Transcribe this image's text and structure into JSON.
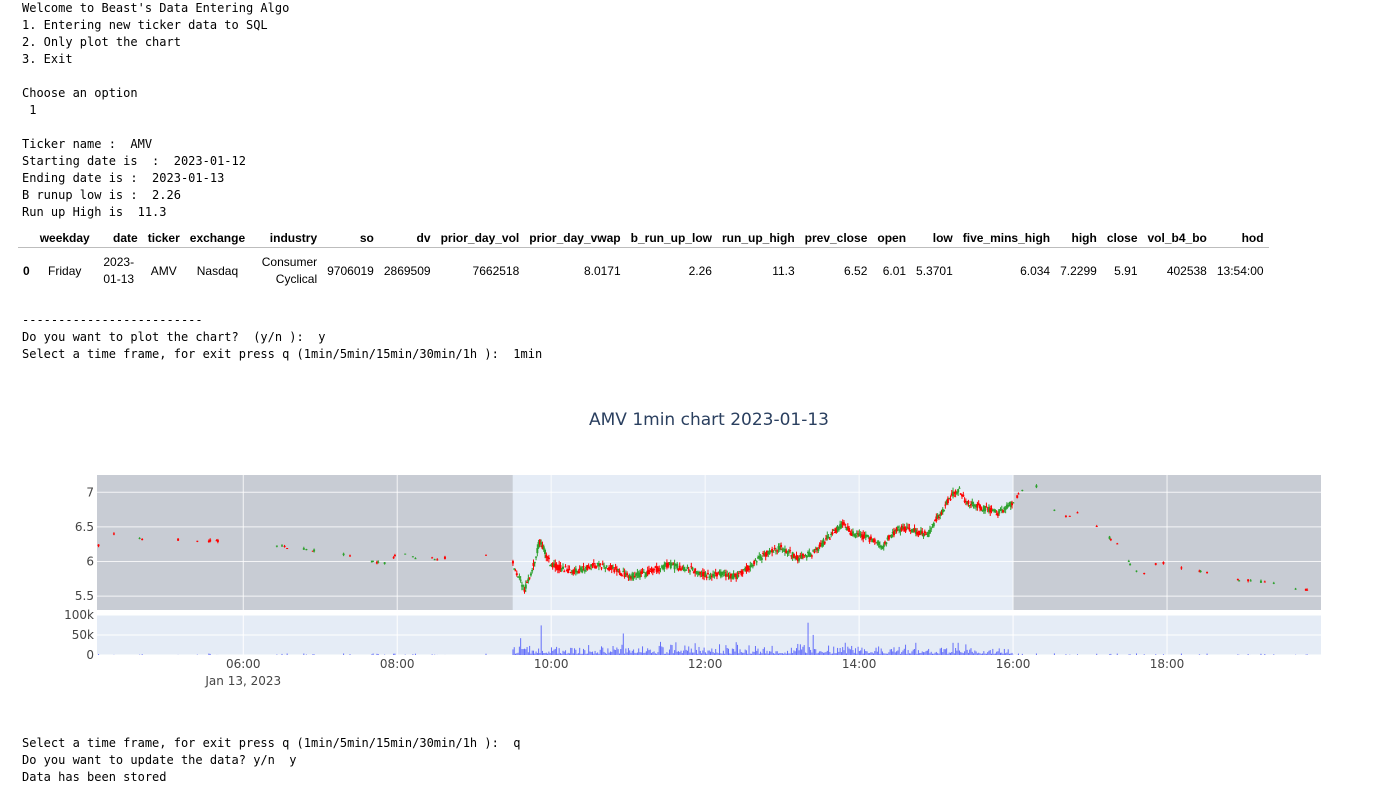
{
  "console_top": [
    "Welcome to Beast's Data Entering Algo",
    "1. Entering new ticker data to SQL",
    "2. Only plot the chart",
    "3. Exit",
    "",
    "Choose an option",
    " 1",
    "",
    "Ticker name :  AMV",
    "Starting date is  :  2023-01-12",
    "Ending date is :  2023-01-13",
    "B runup low is :  2.26",
    "Run up High is  11.3"
  ],
  "table": {
    "columns": [
      "",
      "weekday",
      "date",
      "ticker",
      "exchange",
      "industry",
      "so",
      "dv",
      "prior_day_vol",
      "prior_day_vwap",
      "b_run_up_low",
      "run_up_high",
      "prev_close",
      "open",
      "low",
      "five_mins_high",
      "high",
      "close",
      "vol_b4_bo",
      "hod"
    ],
    "rows": [
      [
        "0",
        "Friday",
        "2023-01-13",
        "AMV",
        "Nasdaq",
        "Consumer Cyclical",
        "9706019",
        "2869509",
        "7662518",
        "8.0171",
        "2.26",
        "11.3",
        "6.52",
        "6.01",
        "5.3701",
        "6.034",
        "7.2299",
        "5.91",
        "402538",
        "13:54:00"
      ]
    ]
  },
  "console_mid": [
    "-------------------------",
    "Do you want to plot the chart?  (y/n ):  y",
    "Select a time frame, for exit press q (1min/5min/15min/30min/1h ):  1min"
  ],
  "console_bottom": [
    "Select a time frame, for exit press q (1min/5min/15min/30min/1h ):  q",
    "Do you want to update the data? y/n  y",
    "Data has been stored"
  ],
  "chart_data": {
    "type": "candlestick",
    "title": "AMV 1min chart 2023-01-13",
    "x_date_label": "Jan 13, 2023",
    "x_range_hours": [
      4.1,
      20.0
    ],
    "x_ticks": [
      {
        "h": 6,
        "label": "06:00"
      },
      {
        "h": 8,
        "label": "08:00"
      },
      {
        "h": 10,
        "label": "10:00"
      },
      {
        "h": 12,
        "label": "12:00"
      },
      {
        "h": 14,
        "label": "14:00"
      },
      {
        "h": 16,
        "label": "16:00"
      },
      {
        "h": 18,
        "label": "18:00"
      }
    ],
    "price_ylim": [
      5.3,
      7.25
    ],
    "price_ticks": [
      {
        "v": 5.5,
        "label": "5.5"
      },
      {
        "v": 6,
        "label": "6"
      },
      {
        "v": 6.5,
        "label": "6.5"
      },
      {
        "v": 7,
        "label": "7"
      }
    ],
    "volume_ylim": [
      0,
      100000
    ],
    "volume_ticks": [
      {
        "v": 0,
        "label": "0"
      },
      {
        "v": 50000,
        "label": "50k"
      },
      {
        "v": 100000,
        "label": "100k"
      }
    ],
    "extended_hours_shading": [
      [
        4.1,
        9.5
      ],
      [
        16.0,
        20.0
      ]
    ],
    "colors": {
      "up": "#2ca02c",
      "down": "#ff0000",
      "volume": "#636efa",
      "plot_bg": "#e5ecf6",
      "shade": "#c8ccd4",
      "grid": "#ffffff",
      "text": "#444444",
      "title": "#2a3f5f"
    },
    "price_path": [
      [
        4.1,
        6.2
      ],
      [
        4.2,
        6.35
      ],
      [
        4.3,
        6.4
      ],
      [
        4.5,
        6.38
      ],
      [
        4.8,
        6.3
      ],
      [
        5.2,
        6.32
      ],
      [
        5.6,
        6.3
      ],
      [
        6.0,
        6.28
      ],
      [
        6.5,
        6.22
      ],
      [
        6.8,
        6.18
      ],
      [
        7.0,
        6.14
      ],
      [
        7.3,
        6.1
      ],
      [
        7.6,
        6.0
      ],
      [
        7.9,
        5.98
      ],
      [
        8.0,
        6.12
      ],
      [
        8.3,
        6.05
      ],
      [
        8.6,
        6.05
      ],
      [
        8.9,
        6.05
      ],
      [
        9.2,
        6.12
      ],
      [
        9.45,
        6.1
      ],
      [
        9.55,
        5.85
      ],
      [
        9.65,
        5.6
      ],
      [
        9.75,
        5.85
      ],
      [
        9.85,
        6.3
      ],
      [
        10.0,
        5.95
      ],
      [
        10.3,
        5.85
      ],
      [
        10.6,
        5.95
      ],
      [
        10.8,
        5.9
      ],
      [
        11.0,
        5.78
      ],
      [
        11.2,
        5.82
      ],
      [
        11.5,
        5.95
      ],
      [
        11.8,
        5.9
      ],
      [
        12.0,
        5.8
      ],
      [
        12.2,
        5.82
      ],
      [
        12.4,
        5.78
      ],
      [
        12.6,
        5.95
      ],
      [
        12.8,
        6.12
      ],
      [
        13.0,
        6.2
      ],
      [
        13.2,
        6.05
      ],
      [
        13.4,
        6.12
      ],
      [
        13.6,
        6.35
      ],
      [
        13.8,
        6.55
      ],
      [
        13.9,
        6.4
      ],
      [
        14.1,
        6.35
      ],
      [
        14.3,
        6.22
      ],
      [
        14.5,
        6.48
      ],
      [
        14.7,
        6.45
      ],
      [
        14.9,
        6.38
      ],
      [
        15.0,
        6.6
      ],
      [
        15.2,
        6.95
      ],
      [
        15.3,
        7.05
      ],
      [
        15.4,
        6.85
      ],
      [
        15.6,
        6.78
      ],
      [
        15.8,
        6.7
      ],
      [
        16.0,
        6.85
      ],
      [
        16.2,
        7.18
      ],
      [
        16.35,
        7.05
      ],
      [
        16.5,
        6.75
      ],
      [
        16.7,
        6.65
      ],
      [
        16.9,
        6.72
      ],
      [
        17.0,
        6.6
      ],
      [
        17.2,
        6.4
      ],
      [
        17.4,
        6.2
      ],
      [
        17.55,
        5.9
      ],
      [
        17.7,
        5.82
      ],
      [
        17.9,
        6.0
      ],
      [
        18.1,
        5.95
      ],
      [
        18.3,
        5.85
      ],
      [
        18.5,
        5.85
      ],
      [
        18.7,
        5.8
      ],
      [
        18.9,
        5.75
      ],
      [
        19.1,
        5.72
      ],
      [
        19.3,
        5.7
      ],
      [
        19.5,
        5.68
      ],
      [
        19.7,
        5.6
      ],
      [
        20.0,
        5.58
      ]
    ]
  }
}
